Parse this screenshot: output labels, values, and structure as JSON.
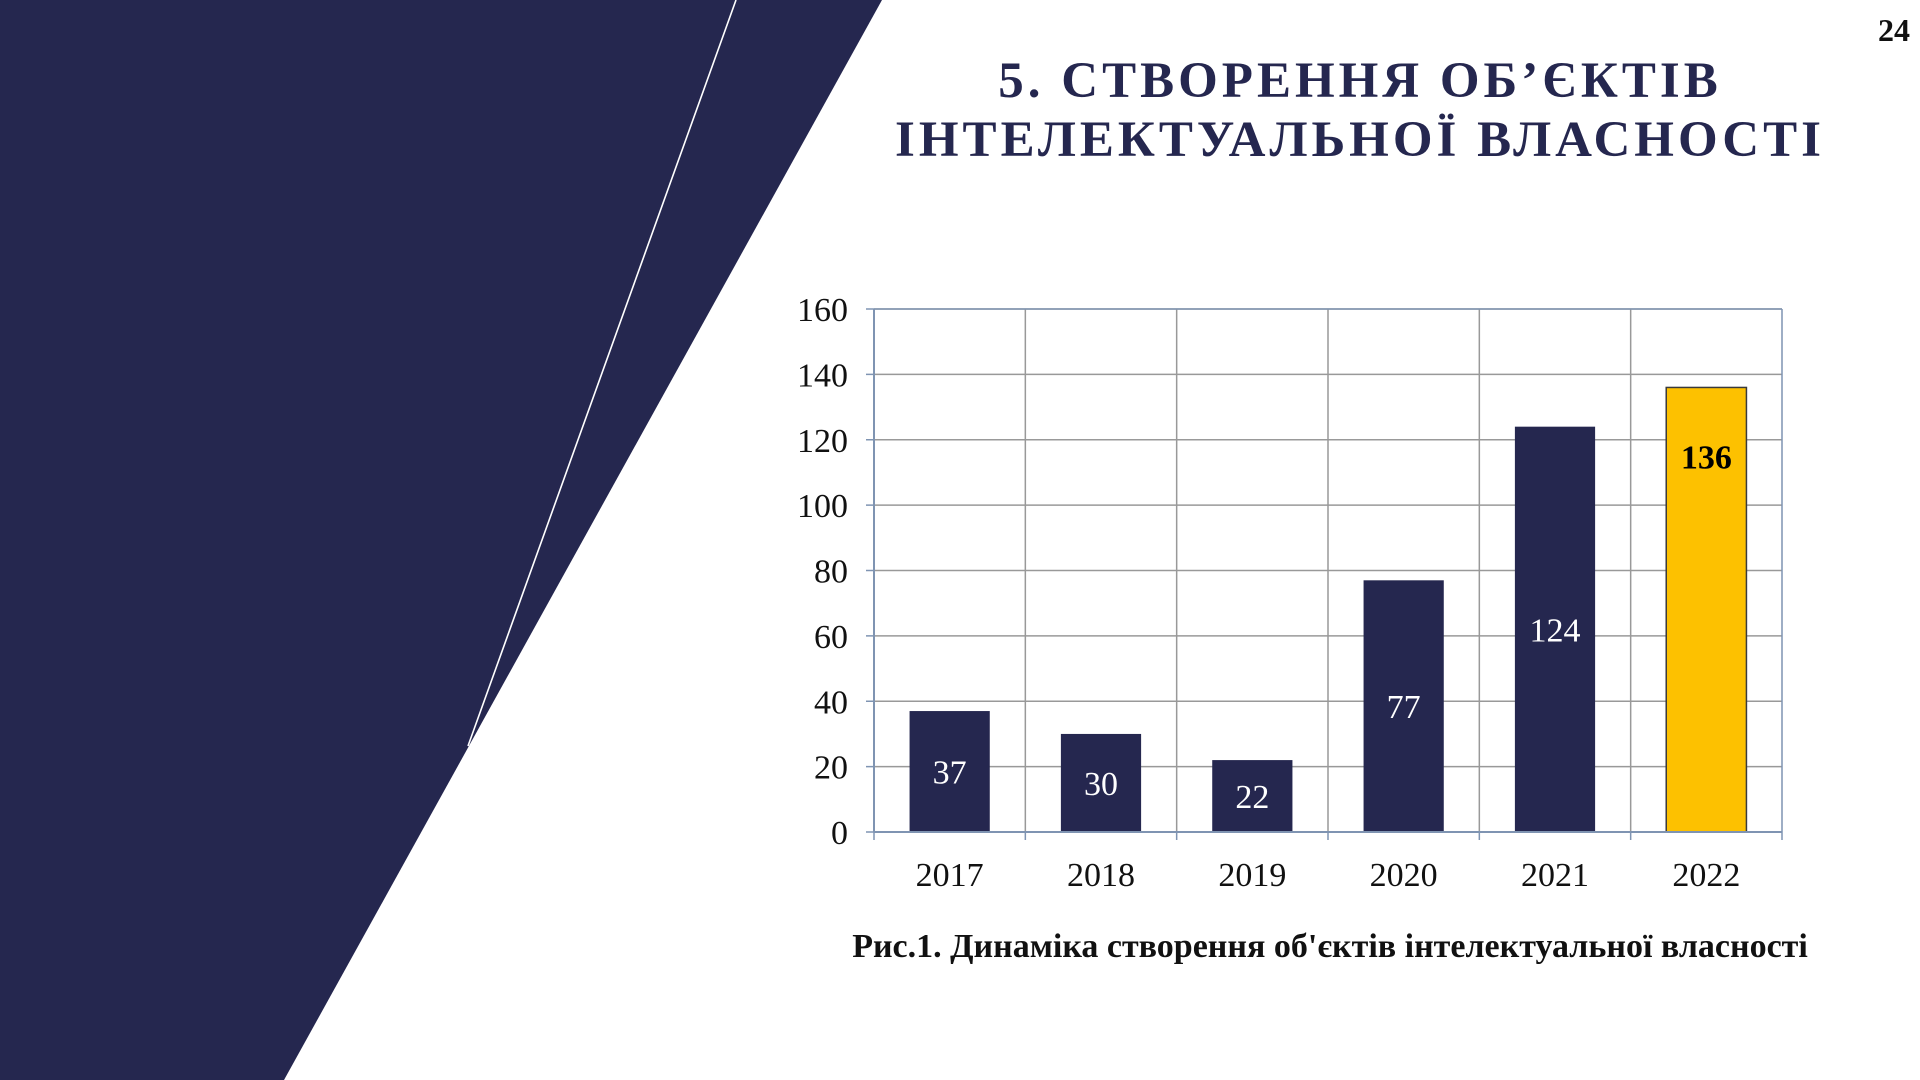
{
  "page_number": "24",
  "title": {
    "line1": "5. СТВОРЕННЯ ОБ’ЄКТІВ",
    "line2": "ІНТЕЛЕКТУАЛЬНОЇ ВЛАСНОСТІ"
  },
  "colors": {
    "navy": "#25274f",
    "highlight": "#fdc100",
    "grid": "#999999",
    "axis": "#7f94b2"
  },
  "chart_data": {
    "type": "bar",
    "categories": [
      "2017",
      "2018",
      "2019",
      "2020",
      "2021",
      "2022"
    ],
    "values": [
      37,
      30,
      22,
      77,
      124,
      136
    ],
    "ylim": [
      0,
      160
    ],
    "yticks": [
      0,
      20,
      40,
      60,
      80,
      100,
      120,
      140,
      160
    ],
    "grid": true,
    "legend": "none",
    "highlight_category": "2022",
    "title": "",
    "xlabel": "",
    "ylabel": ""
  },
  "caption": "Рис.1. Динаміка створення об'єктів інтелектуальної власності"
}
